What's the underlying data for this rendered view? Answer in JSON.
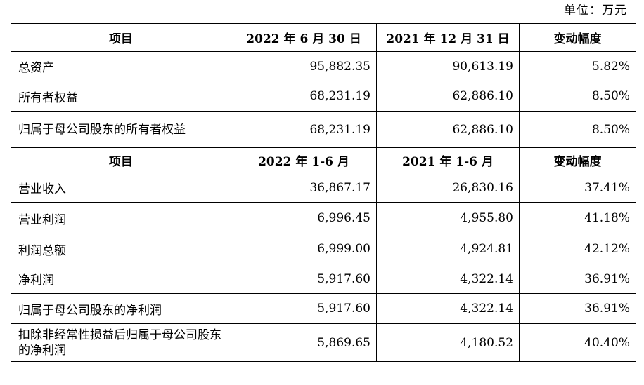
{
  "unit_label": "单位：万元",
  "header1": [
    "项目",
    "2022 年 6 月 30 日",
    "2021 年 12 月 31 日",
    "变动幅度"
  ],
  "balance_rows": [
    {
      "label": "总资产",
      "current": "95,882.35",
      "prior": "90,613.19",
      "change": "5.82%"
    },
    {
      "label": "所有者权益",
      "current": "68,231.19",
      "prior": "62,886.10",
      "change": "8.50%"
    },
    {
      "label": "归属于母公司股东的所有者权益",
      "current": "68,231.19",
      "prior": "62,886.10",
      "change": "8.50%"
    }
  ],
  "header2": [
    "项目",
    "2022 年 1-6 月",
    "2021 年 1-6 月",
    "变动幅度"
  ],
  "income_rows": [
    {
      "label": "营业收入",
      "current": "36,867.17",
      "prior": "26,830.16",
      "change": "37.41%"
    },
    {
      "label": "营业利润",
      "current": "6,996.45",
      "prior": "4,955.80",
      "change": "41.18%"
    },
    {
      "label": "利润总额",
      "current": "6,999.00",
      "prior": "4,924.81",
      "change": "42.12%"
    },
    {
      "label": "净利润",
      "current": "5,917.60",
      "prior": "4,322.14",
      "change": "36.91%"
    },
    {
      "label": "归属于母公司股东的净利润",
      "current": "5,917.60",
      "prior": "4,322.14",
      "change": "36.91%"
    },
    {
      "label": "扣除非经常性损益后归属于母公司股东的净利润",
      "current": "5,869.65",
      "prior": "4,180.52",
      "change": "40.40%"
    }
  ]
}
